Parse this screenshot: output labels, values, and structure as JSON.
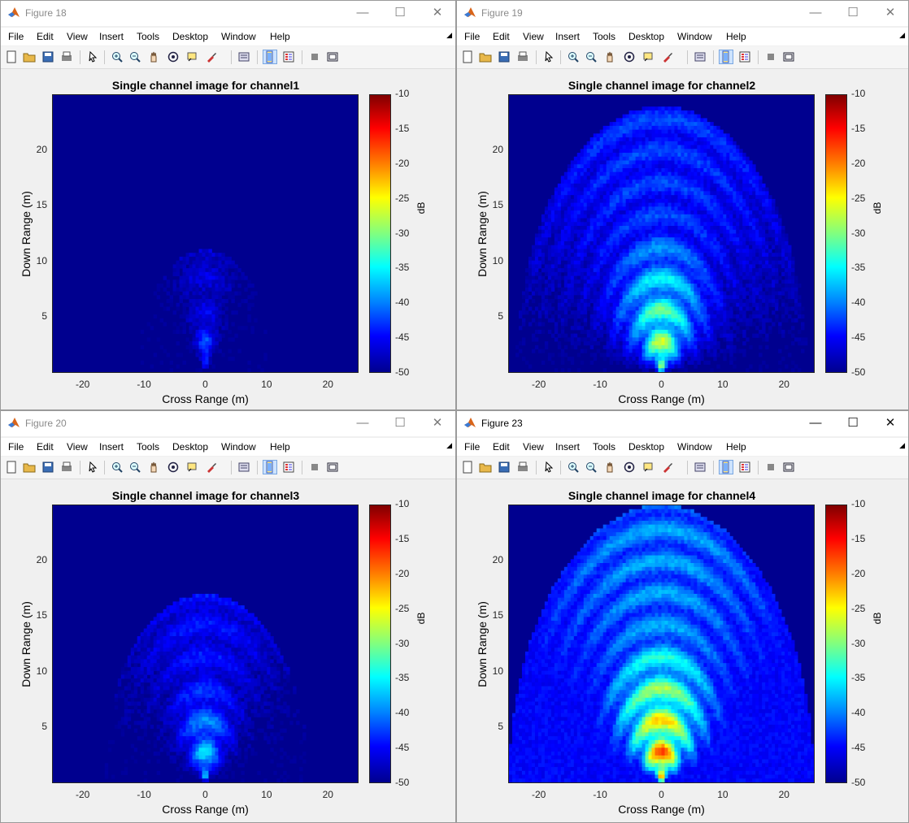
{
  "menu": [
    "File",
    "Edit",
    "View",
    "Insert",
    "Tools",
    "Desktop",
    "Window",
    "Help"
  ],
  "toolbar_icons": [
    "new-icon",
    "open-icon",
    "save-icon",
    "print-icon",
    "pointer-icon",
    "zoom-in-icon",
    "zoom-out-icon",
    "pan-icon",
    "rotate-icon",
    "data-cursor-icon",
    "brush-icon",
    "link-icon",
    "colorbar-icon",
    "legend-icon",
    "hide-plot-tools-icon",
    "show-plot-tools-icon"
  ],
  "windows": [
    {
      "title": "Figure 18",
      "active": false
    },
    {
      "title": "Figure 19",
      "active": false
    },
    {
      "title": "Figure 20",
      "active": false
    },
    {
      "title": "Figure 23",
      "active": true
    }
  ],
  "window_controls": {
    "minimize": "—",
    "maximize": "☐",
    "close": "✕"
  },
  "chart_data": [
    {
      "type": "heatmap",
      "title": "Single channel image for channel1",
      "xlabel": "Cross Range (m)",
      "ylabel": "Down Range (m)",
      "xlim": [
        -25,
        25
      ],
      "ylim": [
        0,
        25
      ],
      "xticks": [
        "-20",
        "-10",
        "0",
        "10",
        "20"
      ],
      "yticks": [
        "5",
        "10",
        "15",
        "20"
      ],
      "colorbar": {
        "label": "dB",
        "range": [
          -50,
          -10
        ],
        "ticks": [
          "-10",
          "-15",
          "-20",
          "-25",
          "-30",
          "-35",
          "-40",
          "-45",
          "-50"
        ]
      },
      "peak_db": -38,
      "ring_extent": 11,
      "ring_level": -46
    },
    {
      "type": "heatmap",
      "title": "Single channel image for channel2",
      "xlabel": "Cross Range (m)",
      "ylabel": "Down Range (m)",
      "xlim": [
        -25,
        25
      ],
      "ylim": [
        0,
        25
      ],
      "xticks": [
        "-20",
        "-10",
        "0",
        "10",
        "20"
      ],
      "yticks": [
        "5",
        "10",
        "15",
        "20"
      ],
      "colorbar": {
        "label": "dB",
        "range": [
          -50,
          -10
        ],
        "ticks": [
          "-10",
          "-15",
          "-20",
          "-25",
          "-30",
          "-35",
          "-40",
          "-45",
          "-50"
        ]
      },
      "peak_db": -22,
      "ring_extent": 24,
      "ring_level": -42
    },
    {
      "type": "heatmap",
      "title": "Single channel image for channel3",
      "xlabel": "Cross Range (m)",
      "ylabel": "Down Range (m)",
      "xlim": [
        -25,
        25
      ],
      "ylim": [
        0,
        25
      ],
      "xticks": [
        "-20",
        "-10",
        "0",
        "10",
        "20"
      ],
      "yticks": [
        "5",
        "10",
        "15",
        "20"
      ],
      "colorbar": {
        "label": "dB",
        "range": [
          -50,
          -10
        ],
        "ticks": [
          "-10",
          "-15",
          "-20",
          "-25",
          "-30",
          "-35",
          "-40",
          "-45",
          "-50"
        ]
      },
      "peak_db": -32,
      "ring_extent": 17,
      "ring_level": -44
    },
    {
      "type": "heatmap",
      "title": "Single channel image for channel4",
      "xlabel": "Cross Range (m)",
      "ylabel": "Down Range (m)",
      "xlim": [
        -25,
        25
      ],
      "ylim": [
        0,
        25
      ],
      "xticks": [
        "-20",
        "-10",
        "0",
        "10",
        "20"
      ],
      "yticks": [
        "5",
        "10",
        "15",
        "20"
      ],
      "colorbar": {
        "label": "dB",
        "range": [
          -50,
          -10
        ],
        "ticks": [
          "-10",
          "-15",
          "-20",
          "-25",
          "-30",
          "-35",
          "-40",
          "-45",
          "-50"
        ]
      },
      "peak_db": -12,
      "ring_extent": 25,
      "ring_level": -38
    }
  ],
  "colors": {
    "window_bg": "#f0f0f0",
    "colormap": "jet",
    "axes_border": "#262626"
  }
}
